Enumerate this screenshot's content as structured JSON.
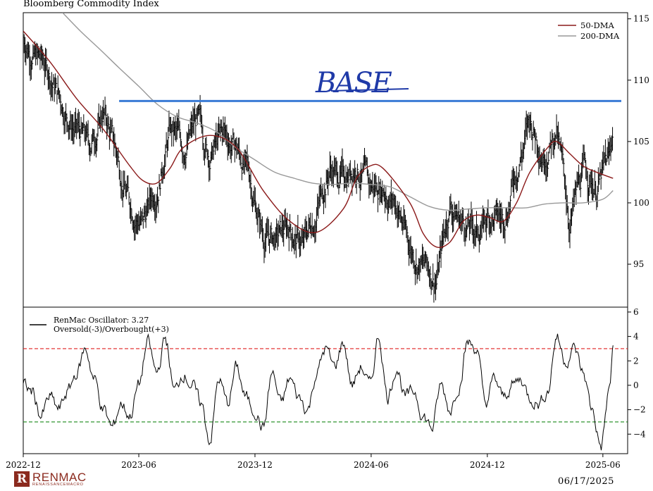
{
  "header": {
    "title": "Bloomberg Commodity Index"
  },
  "footer": {
    "date": "06/17/2025",
    "logo_name": "RENMAC",
    "logo_sub": "RENAISSANCEMACRO",
    "logo_mark": "R"
  },
  "annotation": {
    "text": "BASE",
    "level": 108.3,
    "start": "2023-05-01",
    "end": "2025-06-30",
    "color": "#3a7bd5"
  },
  "chart_data": [
    {
      "type": "line",
      "panel": "price",
      "title": "Bloomberg Commodity Index",
      "xlabel": "",
      "ylabel": "",
      "xlim": [
        "2022-12-01",
        "2025-07-10"
      ],
      "ylim": [
        91.5,
        115.5
      ],
      "yticks": [
        95,
        100,
        105,
        110,
        115
      ],
      "grid": false,
      "legend": "top-right",
      "series": [
        {
          "name": "",
          "style": "ohlc-bars",
          "color": "#000000",
          "x": [
            "2022-12-01",
            "2022-12-22",
            "2023-01-12",
            "2023-02-02",
            "2023-02-23",
            "2023-03-16",
            "2023-04-06",
            "2023-04-27",
            "2023-05-18",
            "2023-06-08",
            "2023-06-29",
            "2023-07-20",
            "2023-08-10",
            "2023-08-31",
            "2023-09-21",
            "2023-10-12",
            "2023-11-02",
            "2023-11-23",
            "2023-12-14",
            "2024-01-04",
            "2024-01-25",
            "2024-02-15",
            "2024-03-07",
            "2024-03-28",
            "2024-04-18",
            "2024-05-09",
            "2024-05-30",
            "2024-06-20",
            "2024-07-11",
            "2024-08-01",
            "2024-08-22",
            "2024-09-12",
            "2024-10-03",
            "2024-10-24",
            "2024-11-14",
            "2024-12-05",
            "2024-12-26",
            "2025-01-16",
            "2025-02-06",
            "2025-02-27",
            "2025-03-20",
            "2025-04-10",
            "2025-05-01",
            "2025-05-22",
            "2025-06-12",
            "2025-06-17"
          ],
          "y": [
            113.5,
            112.0,
            110.5,
            108.0,
            106.0,
            104.5,
            107.5,
            104.0,
            100.0,
            98.5,
            101.5,
            106.0,
            104.5,
            106.5,
            104.0,
            105.5,
            104.5,
            102.0,
            97.5,
            97.0,
            98.0,
            96.5,
            99.5,
            103.0,
            102.0,
            103.5,
            101.0,
            101.5,
            100.0,
            96.5,
            95.0,
            94.0,
            100.0,
            98.5,
            97.5,
            99.0,
            98.5,
            103.0,
            106.5,
            104.5,
            106.0,
            98.5,
            102.5,
            101.5,
            103.5,
            106.0
          ]
        },
        {
          "name": "50-DMA",
          "color": "#8b1a1a",
          "x": [
            "2022-12-01",
            "2023-01-12",
            "2023-02-23",
            "2023-04-06",
            "2023-05-18",
            "2023-06-08",
            "2023-06-29",
            "2023-07-20",
            "2023-08-10",
            "2023-09-21",
            "2023-11-02",
            "2023-12-14",
            "2024-01-25",
            "2024-03-07",
            "2024-04-18",
            "2024-05-09",
            "2024-05-30",
            "2024-06-20",
            "2024-08-01",
            "2024-08-22",
            "2024-09-12",
            "2024-10-03",
            "2024-10-24",
            "2024-11-14",
            "2024-12-05",
            "2024-12-26",
            "2025-01-16",
            "2025-02-06",
            "2025-03-06",
            "2025-03-20",
            "2025-04-10",
            "2025-05-01",
            "2025-05-22",
            "2025-06-17"
          ],
          "y": [
            114.0,
            111.5,
            108.5,
            106.0,
            103.0,
            101.8,
            101.6,
            102.8,
            104.5,
            105.5,
            104.5,
            101.0,
            98.5,
            97.6,
            99.5,
            102.0,
            103.0,
            102.8,
            100.0,
            97.5,
            96.4,
            96.8,
            98.5,
            99.0,
            98.8,
            98.5,
            100.0,
            102.5,
            104.5,
            105.0,
            104.0,
            103.0,
            102.5,
            102.0
          ]
        },
        {
          "name": "200-DMA",
          "color": "#999999",
          "x": [
            "2023-02-01",
            "2023-03-01",
            "2023-04-01",
            "2023-05-01",
            "2023-06-01",
            "2023-07-01",
            "2023-08-01",
            "2023-09-01",
            "2023-10-01",
            "2023-11-01",
            "2023-12-01",
            "2024-01-01",
            "2024-02-01",
            "2024-03-01",
            "2024-04-01",
            "2024-05-01",
            "2024-06-01",
            "2024-07-01",
            "2024-08-01",
            "2024-09-01",
            "2024-10-01",
            "2024-11-01",
            "2024-12-01",
            "2025-01-01",
            "2025-02-01",
            "2025-03-01",
            "2025-04-01",
            "2025-05-01",
            "2025-06-01",
            "2025-06-17"
          ],
          "y": [
            115.5,
            114.0,
            112.5,
            111.0,
            109.5,
            108.0,
            107.0,
            106.5,
            105.8,
            104.5,
            103.5,
            102.5,
            102.0,
            101.6,
            101.5,
            101.6,
            101.5,
            101.3,
            100.5,
            99.7,
            99.4,
            99.5,
            99.6,
            99.6,
            99.6,
            99.9,
            100.0,
            100.0,
            100.3,
            101.0
          ]
        }
      ]
    },
    {
      "type": "line",
      "panel": "oscillator",
      "xlabel": "",
      "ylabel": "",
      "xlim": [
        "2022-12-01",
        "2025-07-10"
      ],
      "ylim": [
        -5.6,
        6.4
      ],
      "yticks": [
        -4,
        -2,
        0,
        2,
        4,
        6
      ],
      "xticks": [
        "2022-12",
        "2023-06",
        "2023-12",
        "2024-06",
        "2024-12",
        "2025-06"
      ],
      "grid": false,
      "legend": "top-left",
      "legend_lines": [
        "RenMac Oscillator: 3.27",
        "Oversold(-3)/Overbought(+3)"
      ],
      "hlines": [
        {
          "y": 3,
          "color": "#e02020",
          "style": "dashed"
        },
        {
          "y": -3,
          "color": "#1a8a1a",
          "style": "dashed"
        }
      ],
      "series": [
        {
          "name": "RenMac Oscillator",
          "color": "#000000",
          "x": [
            "2022-12-01",
            "2022-12-15",
            "2022-12-29",
            "2023-01-12",
            "2023-01-26",
            "2023-02-09",
            "2023-02-23",
            "2023-03-09",
            "2023-03-23",
            "2023-04-06",
            "2023-04-20",
            "2023-05-04",
            "2023-05-18",
            "2023-06-01",
            "2023-06-15",
            "2023-06-29",
            "2023-07-13",
            "2023-07-27",
            "2023-08-10",
            "2023-08-24",
            "2023-09-07",
            "2023-09-21",
            "2023-10-05",
            "2023-10-19",
            "2023-11-02",
            "2023-11-16",
            "2023-11-30",
            "2023-12-14",
            "2023-12-28",
            "2024-01-11",
            "2024-01-25",
            "2024-02-08",
            "2024-02-22",
            "2024-03-07",
            "2024-03-21",
            "2024-04-04",
            "2024-04-18",
            "2024-05-02",
            "2024-05-16",
            "2024-05-30",
            "2024-06-13",
            "2024-06-27",
            "2024-07-11",
            "2024-07-25",
            "2024-08-08",
            "2024-08-22",
            "2024-09-05",
            "2024-09-19",
            "2024-10-03",
            "2024-10-17",
            "2024-10-31",
            "2024-11-14",
            "2024-11-28",
            "2024-12-12",
            "2024-12-26",
            "2025-01-09",
            "2025-01-23",
            "2025-02-06",
            "2025-02-20",
            "2025-03-06",
            "2025-03-20",
            "2025-04-03",
            "2025-04-17",
            "2025-05-01",
            "2025-05-15",
            "2025-05-29",
            "2025-06-12",
            "2025-06-17"
          ],
          "y": [
            0.0,
            -0.5,
            -2.5,
            -1.0,
            -2.0,
            -0.5,
            1.0,
            3.0,
            0.5,
            -2.0,
            -3.5,
            -1.5,
            -2.5,
            0.0,
            3.5,
            1.0,
            3.8,
            -0.5,
            1.0,
            0.0,
            -1.5,
            -4.5,
            0.5,
            -1.5,
            1.5,
            -1.0,
            -2.0,
            -3.5,
            1.0,
            -1.5,
            0.5,
            -1.0,
            -2.0,
            1.0,
            3.0,
            1.5,
            3.5,
            0.0,
            1.5,
            0.0,
            4.0,
            -1.0,
            1.5,
            -1.0,
            -0.5,
            -2.5,
            -3.5,
            0.0,
            -2.0,
            0.0,
            3.5,
            3.0,
            -1.5,
            0.5,
            -1.0,
            0.0,
            0.5,
            -1.0,
            -1.5,
            -0.5,
            4.0,
            2.0,
            3.0,
            1.0,
            -2.0,
            -5.0,
            0.0,
            3.27
          ]
        }
      ]
    }
  ]
}
